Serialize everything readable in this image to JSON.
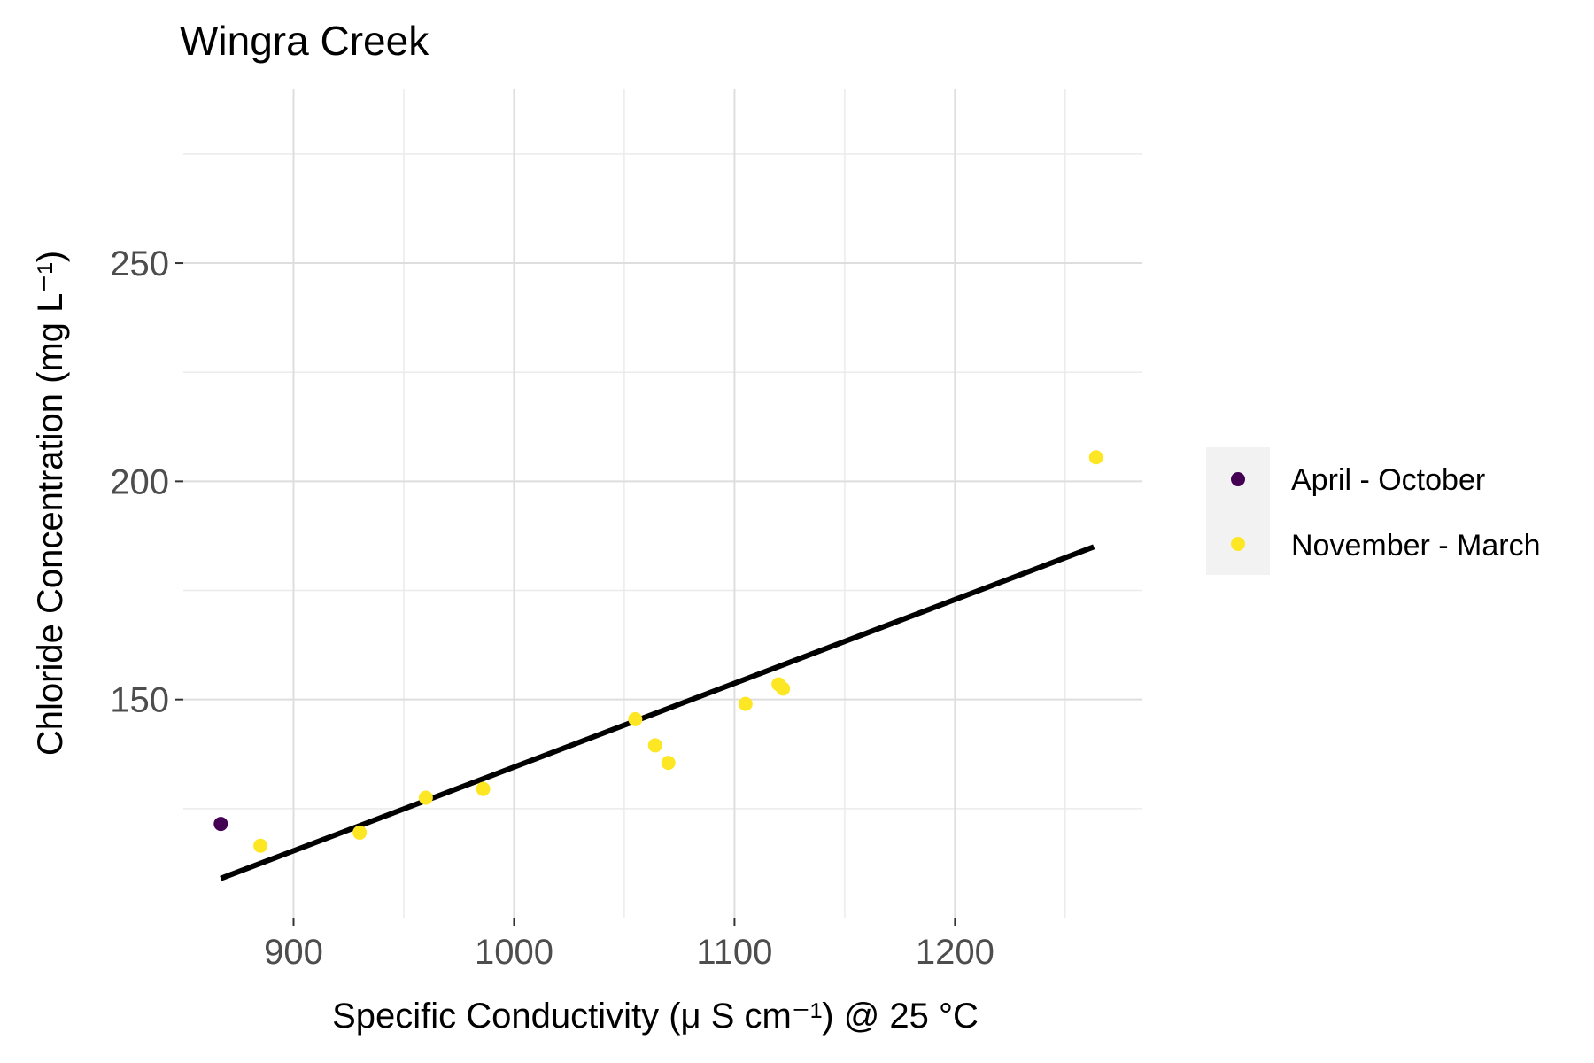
{
  "chart_data": {
    "type": "scatter",
    "title": "Wingra Creek",
    "xlabel": "Specific Conductivity (μ S cm⁻¹) @ 25 °C",
    "ylabel": "Chloride Concentration (mg L⁻¹)",
    "xlim": [
      850,
      1285
    ],
    "ylim": [
      100,
      290
    ],
    "x_ticks": [
      900,
      1000,
      1100,
      1200
    ],
    "y_ticks": [
      150,
      200,
      250
    ],
    "x_tick_labels": [
      "900",
      "1000",
      "1100",
      "1200"
    ],
    "y_tick_labels": [
      "150",
      "200",
      "250"
    ],
    "grid": true,
    "legend_position": "right",
    "series": [
      {
        "name": "April - October",
        "color": "#440154",
        "points": [
          {
            "x": 867,
            "y": 121.5
          }
        ]
      },
      {
        "name": "November - March",
        "color": "#FDE725",
        "points": [
          {
            "x": 885,
            "y": 116.5
          },
          {
            "x": 930,
            "y": 119.5
          },
          {
            "x": 960,
            "y": 127.5
          },
          {
            "x": 986,
            "y": 129.5
          },
          {
            "x": 1055,
            "y": 145.5
          },
          {
            "x": 1064,
            "y": 139.5
          },
          {
            "x": 1070,
            "y": 135.5
          },
          {
            "x": 1105,
            "y": 149
          },
          {
            "x": 1120,
            "y": 153.5
          },
          {
            "x": 1122,
            "y": 152.5
          },
          {
            "x": 1264,
            "y": 205.5
          }
        ]
      }
    ],
    "fit_line": {
      "color": "#000000",
      "points": [
        {
          "x": 867,
          "y": 109
        },
        {
          "x": 1263,
          "y": 185
        }
      ]
    }
  }
}
